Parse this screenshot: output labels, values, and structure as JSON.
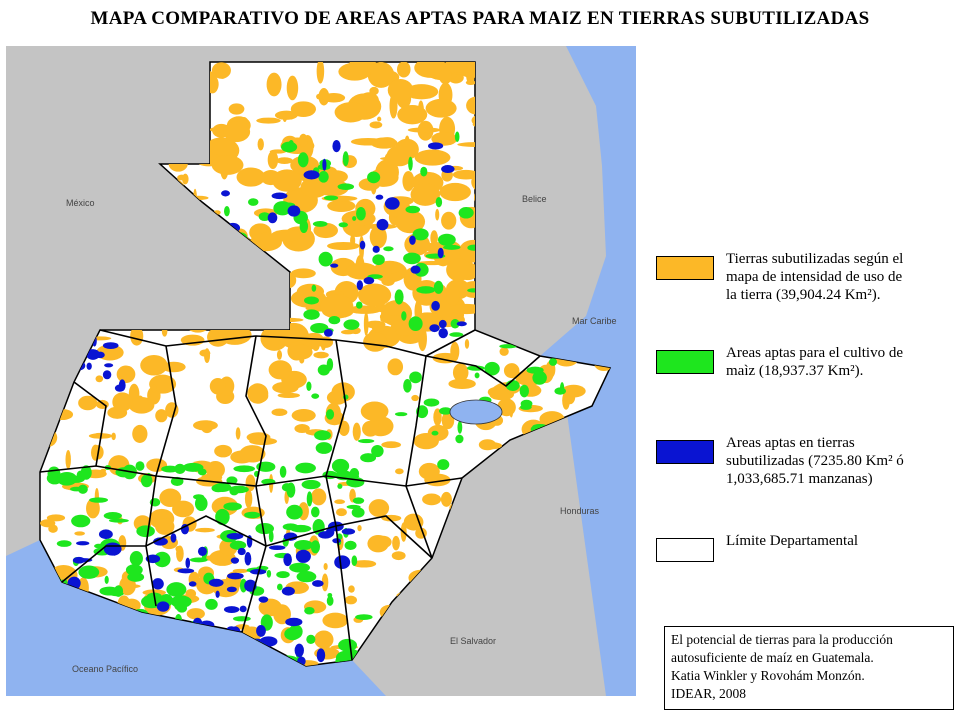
{
  "header": {
    "title": "MAPA COMPARATIVO DE AREAS APTAS PARA MAIZ EN TIERRAS SUBUTILIZADAS"
  },
  "map_labels": [
    "México",
    "Belice",
    "Mar Caribe",
    "Honduras",
    "El Salvador",
    "Oceano Pacífico"
  ],
  "legend": [
    {
      "lines": [
        "Tierras subutilizadas según el",
        "mapa de intensidad de uso de",
        "la tierra (39,904.24 Km²)."
      ]
    },
    {
      "lines": [
        "Areas aptas para el cultivo de",
        "maìz (18,937.37 Km²)."
      ]
    },
    {
      "lines": [
        "Areas aptas en tierras",
        "subutilizadas (7235.80 Km² ó",
        "1,033,685.71 manzanas)"
      ]
    },
    {
      "lines": [
        "Límite Departamental"
      ]
    }
  ],
  "credits": [
    "El potencial de tierras para la producción",
    "autosuficiente de maíz en Guatemala.",
    "Katia Winkler y Rovohám Monzón.",
    "IDEAR, 2008"
  ]
}
